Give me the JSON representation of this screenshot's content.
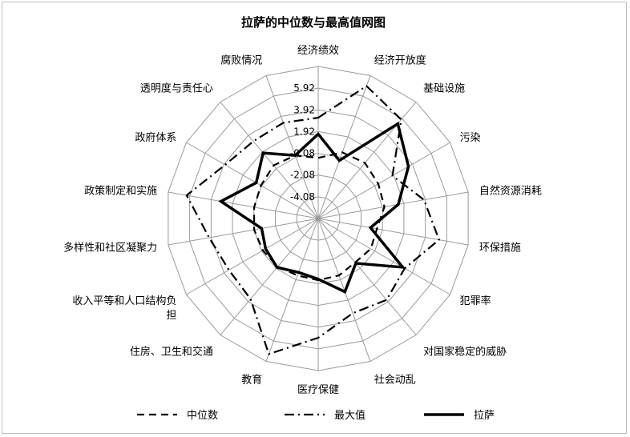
{
  "chart_data": {
    "type": "radar",
    "title": "拉萨的中位数与最高值网图",
    "categories": [
      "经济绩效",
      "经济开放度",
      "基础设施",
      "污染",
      "自然资源消耗",
      "环保措施",
      "犯罪率",
      "对国家稳定的威胁",
      "社会动乱",
      "医疗保健",
      "教育",
      "住房、卫生和交通",
      "收入平等和人口结构负担",
      "多样性和社区凝聚力",
      "政策制定和实施",
      "政府体系",
      "透明度与责任心",
      "腐败情况"
    ],
    "ticks": [
      "-4.08",
      "-2.08",
      "-0.08",
      "1.92",
      "3.92",
      "5.92"
    ],
    "rlim": [
      -6.08,
      7.92
    ],
    "grid_rings": [
      -6.08,
      -4.08,
      -2.08,
      -0.08,
      1.92,
      3.92,
      5.92,
      7.92
    ],
    "legend_position": "bottom",
    "series": [
      {
        "name": "中位数",
        "style": "dash",
        "values": [
          -0.5,
          0.4,
          0.6,
          0.3,
          0.1,
          -0.6,
          -0.5,
          -0.8,
          -0.5,
          -0.4,
          -0.5,
          -0.3,
          -0.2,
          -0.1,
          -0.1,
          0.0,
          0.3,
          0.1
        ]
      },
      {
        "name": "最大值",
        "style": "dashdot",
        "values": [
          3.2,
          6.9,
          5.8,
          1.8,
          3.8,
          5.2,
          3.1,
          3.7,
          3.2,
          4.9,
          7.2,
          3.6,
          3.4,
          4.1,
          6.2,
          3.8,
          3.2,
          3.3
        ]
      },
      {
        "name": "拉萨",
        "style": "solid",
        "values": [
          1.7,
          -0.4,
          5.3,
          3.5,
          1.4,
          -1.2,
          2.9,
          -0.7,
          1.1,
          -0.5,
          -0.8,
          -0.2,
          -0.5,
          -0.8,
          3.0,
          0.5,
          1.8,
          0.1
        ]
      }
    ]
  }
}
